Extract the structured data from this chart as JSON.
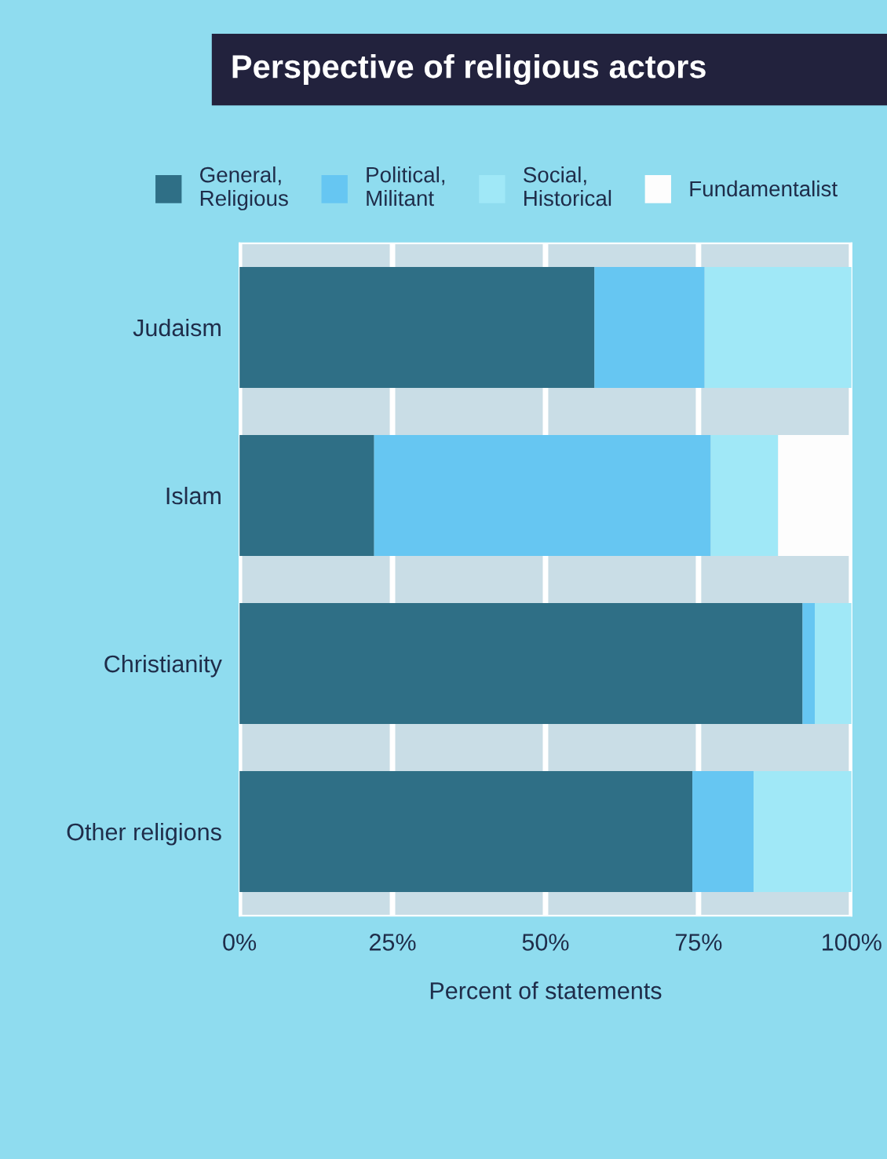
{
  "chart_data": {
    "type": "bar",
    "orientation": "horizontal",
    "stacked": true,
    "title": "Perspective of religious actors",
    "xlabel": "Percent of statements",
    "categories": [
      "Judaism",
      "Islam",
      "Christianity",
      "Other religions"
    ],
    "series": [
      {
        "name": "General,\nReligious",
        "color": "#2f6f86",
        "values": [
          58,
          22,
          92,
          74
        ]
      },
      {
        "name": "Political,\nMilitant",
        "color": "#66c6f2",
        "values": [
          18,
          55,
          2,
          10
        ]
      },
      {
        "name": "Social,\nHistorical",
        "color": "#a0e8f7",
        "values": [
          24,
          11,
          6,
          16
        ]
      },
      {
        "name": "Fundamentalist",
        "color": "#fdfdfd",
        "values": [
          0,
          12,
          0,
          0
        ]
      }
    ],
    "xlim": [
      0,
      100
    ],
    "xticks": [
      {
        "value": 0,
        "label": "0%"
      },
      {
        "value": 25,
        "label": "25%"
      },
      {
        "value": 50,
        "label": "50%"
      },
      {
        "value": 75,
        "label": "75%"
      },
      {
        "value": 100,
        "label": "100%"
      }
    ],
    "grid": "x",
    "legend": "top"
  }
}
